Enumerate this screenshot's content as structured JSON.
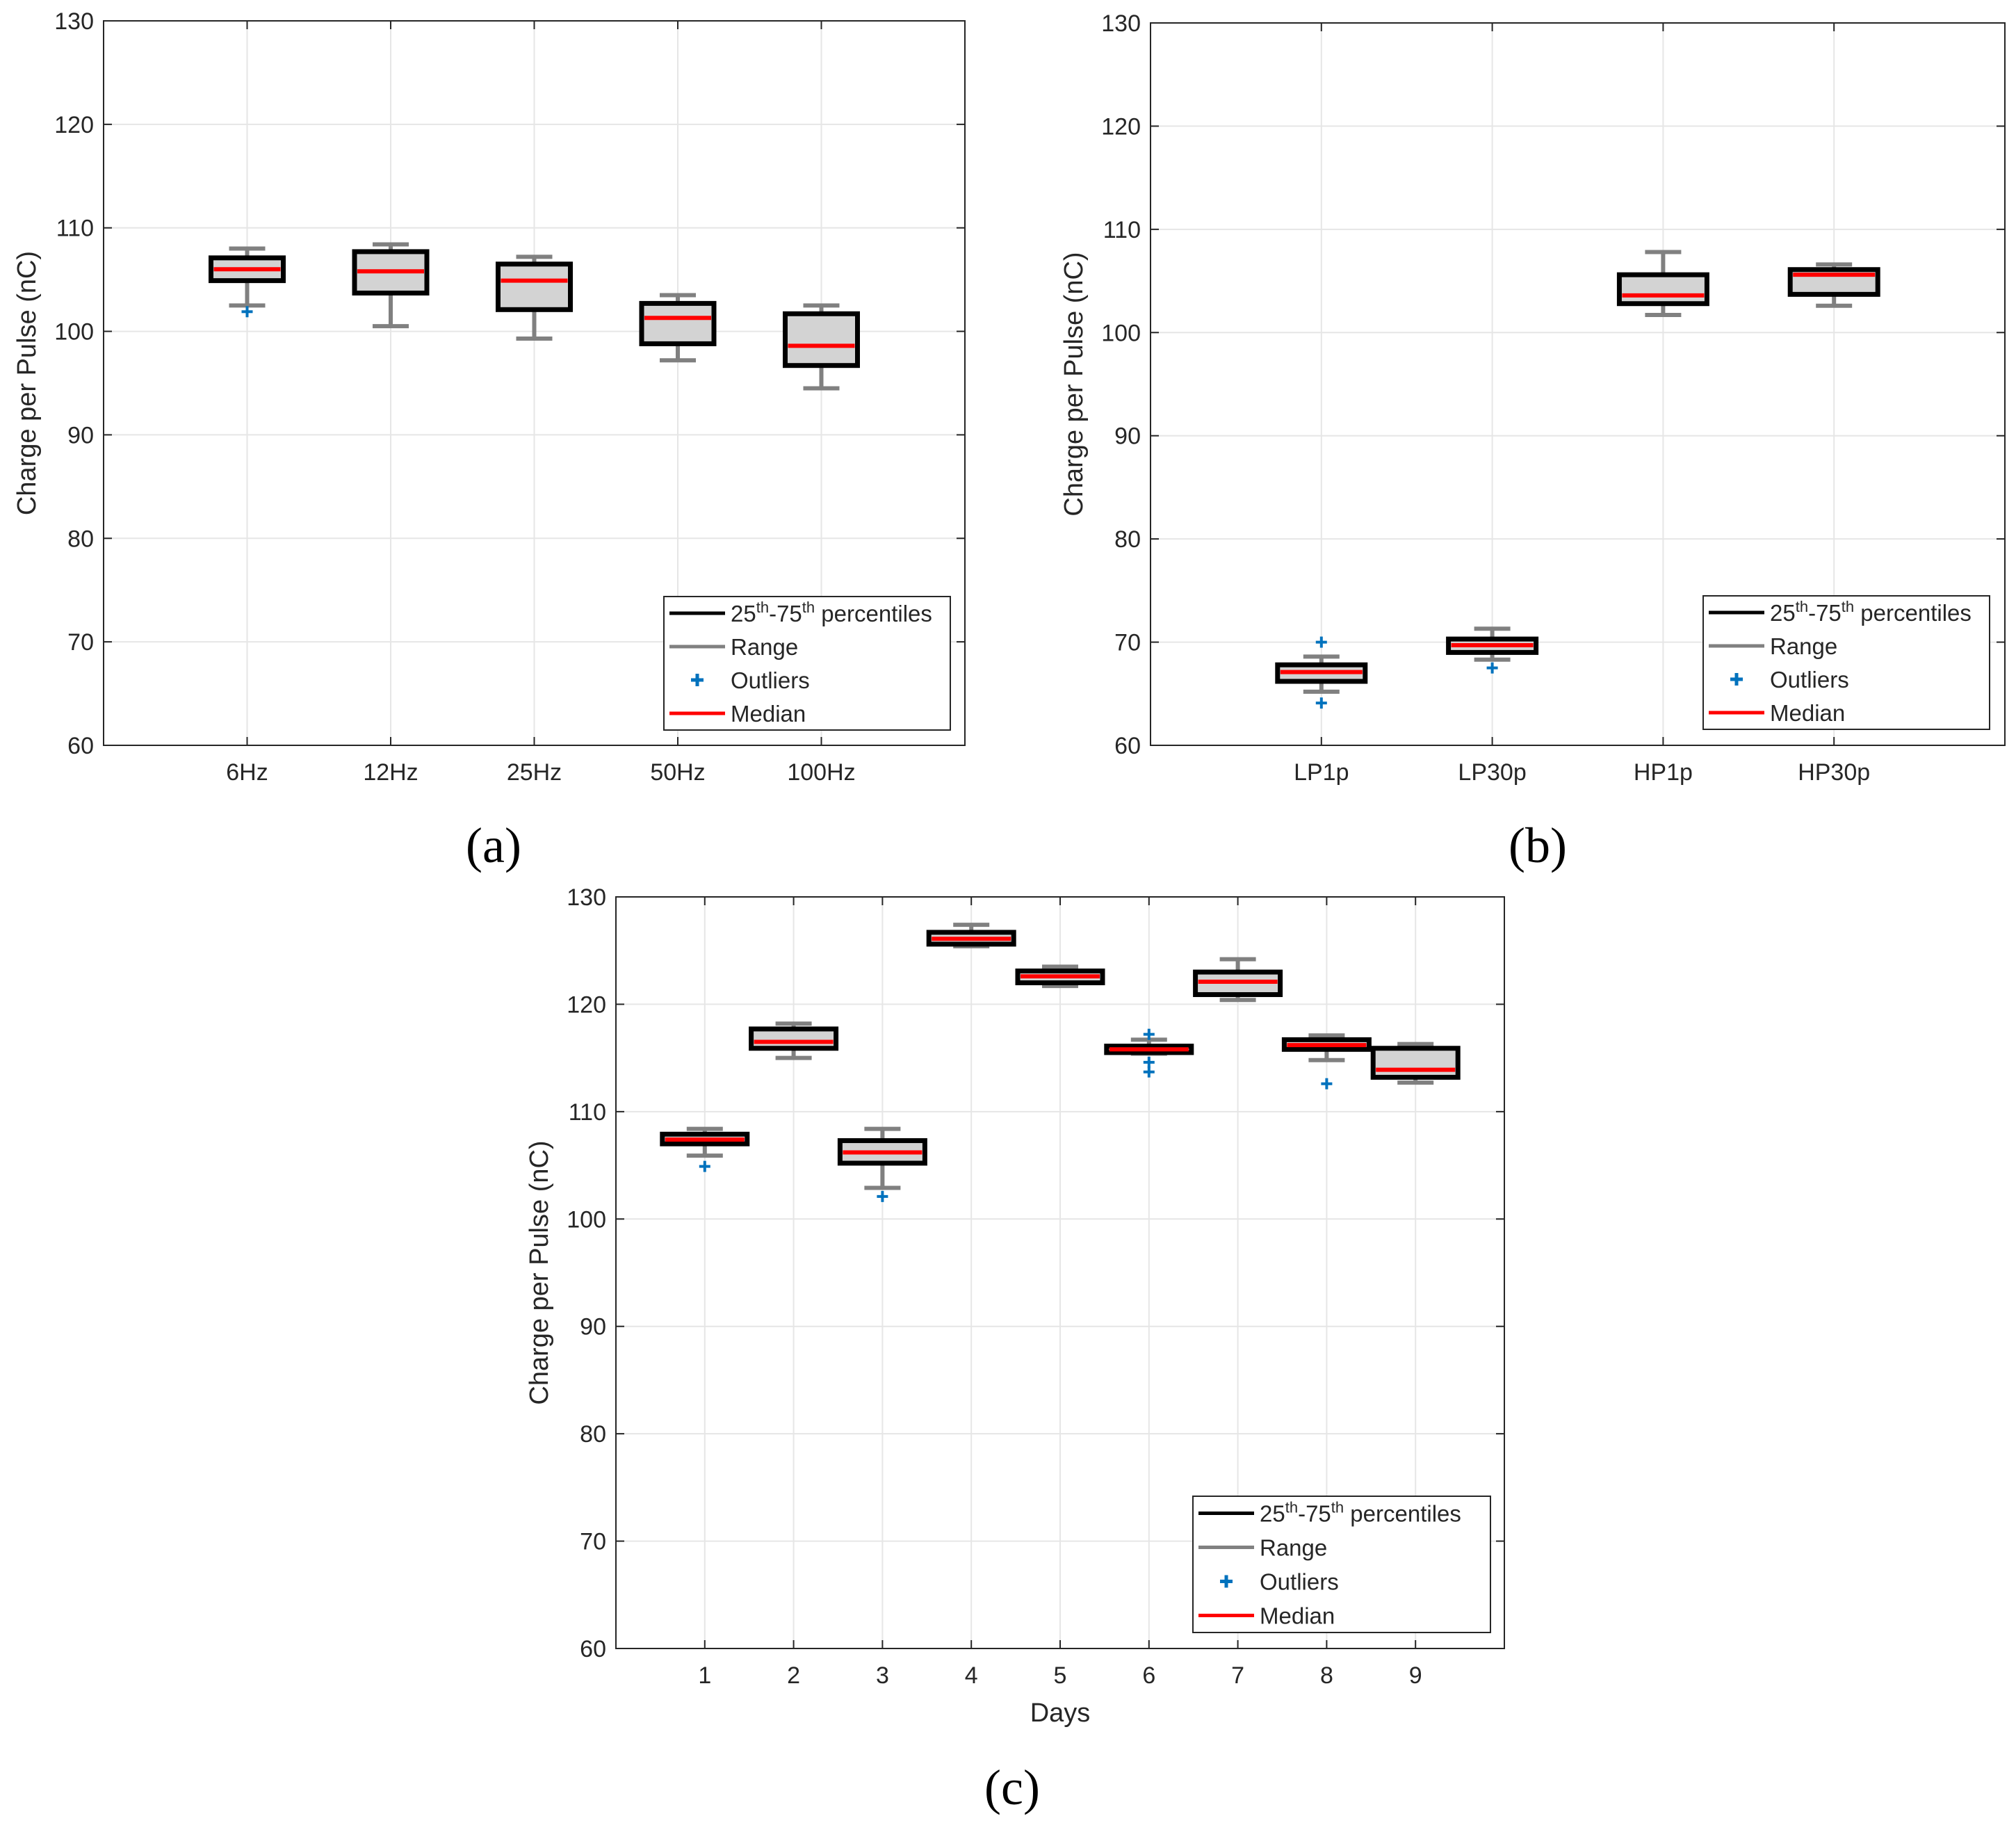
{
  "chart_data": [
    {
      "type": "box",
      "panel_label": "(a)",
      "ylabel": "Charge per Pulse (nC)",
      "xlabel": "",
      "ylim": [
        60,
        130
      ],
      "yticks": [
        "60",
        "70",
        "80",
        "90",
        "100",
        "110",
        "120",
        "130"
      ],
      "grid": true,
      "legend_position": "bottom-right",
      "categories": [
        "6Hz",
        "12Hz",
        "25Hz",
        "50Hz",
        "100Hz"
      ],
      "boxes": [
        {
          "q1": 104.9,
          "median": 106.0,
          "q3": 107.1,
          "whisker_low": 102.5,
          "whisker_high": 108.0,
          "outliers": [
            101.9
          ]
        },
        {
          "q1": 103.7,
          "median": 105.8,
          "q3": 107.7,
          "whisker_low": 100.5,
          "whisker_high": 108.4,
          "outliers": []
        },
        {
          "q1": 102.1,
          "median": 104.9,
          "q3": 106.5,
          "whisker_low": 99.3,
          "whisker_high": 107.2,
          "outliers": []
        },
        {
          "q1": 98.8,
          "median": 101.3,
          "q3": 102.7,
          "whisker_low": 97.2,
          "whisker_high": 103.5,
          "outliers": []
        },
        {
          "q1": 96.7,
          "median": 98.6,
          "q3": 101.7,
          "whisker_low": 94.5,
          "whisker_high": 102.5,
          "outliers": []
        }
      ]
    },
    {
      "type": "box",
      "panel_label": "(b)",
      "ylabel": "Charge per Pulse (nC)",
      "xlabel": "",
      "ylim": [
        60,
        130
      ],
      "yticks": [
        "60",
        "70",
        "80",
        "90",
        "100",
        "110",
        "120",
        "130"
      ],
      "grid": true,
      "legend_position": "bottom-right",
      "categories": [
        "LP1p",
        "LP30p",
        "HP1p",
        "HP30p"
      ],
      "boxes": [
        {
          "q1": 66.2,
          "median": 67.1,
          "q3": 67.8,
          "whisker_low": 65.2,
          "whisker_high": 68.6,
          "outliers": [
            70.0,
            64.1
          ]
        },
        {
          "q1": 69.0,
          "median": 69.7,
          "q3": 70.3,
          "whisker_low": 68.3,
          "whisker_high": 71.3,
          "outliers": [
            67.5
          ]
        },
        {
          "q1": 102.8,
          "median": 103.6,
          "q3": 105.6,
          "whisker_low": 101.7,
          "whisker_high": 107.8,
          "outliers": []
        },
        {
          "q1": 103.7,
          "median": 105.6,
          "q3": 106.1,
          "whisker_low": 102.6,
          "whisker_high": 106.6,
          "outliers": []
        }
      ]
    },
    {
      "type": "box",
      "panel_label": "(c)",
      "ylabel": "Charge per Pulse (nC)",
      "xlabel": "Days",
      "ylim": [
        60,
        130
      ],
      "yticks": [
        "60",
        "70",
        "80",
        "90",
        "100",
        "110",
        "120",
        "130"
      ],
      "grid": true,
      "legend_position": "bottom-right",
      "categories": [
        "1",
        "2",
        "3",
        "4",
        "5",
        "6",
        "7",
        "8",
        "9"
      ],
      "boxes": [
        {
          "q1": 107.0,
          "median": 107.4,
          "q3": 107.9,
          "whisker_low": 105.9,
          "whisker_high": 108.4,
          "outliers": [
            104.9
          ]
        },
        {
          "q1": 115.9,
          "median": 116.5,
          "q3": 117.7,
          "whisker_low": 115.0,
          "whisker_high": 118.2,
          "outliers": []
        },
        {
          "q1": 105.2,
          "median": 106.2,
          "q3": 107.3,
          "whisker_low": 102.9,
          "whisker_high": 108.4,
          "outliers": [
            102.1
          ]
        },
        {
          "q1": 125.6,
          "median": 126.1,
          "q3": 126.7,
          "whisker_low": 125.4,
          "whisker_high": 127.4,
          "outliers": []
        },
        {
          "q1": 122.0,
          "median": 122.6,
          "q3": 123.1,
          "whisker_low": 121.7,
          "whisker_high": 123.5,
          "outliers": []
        },
        {
          "q1": 115.5,
          "median": 115.8,
          "q3": 116.1,
          "whisker_low": 115.4,
          "whisker_high": 116.7,
          "outliers": [
            117.2,
            114.6,
            113.7
          ]
        },
        {
          "q1": 120.9,
          "median": 122.1,
          "q3": 123.0,
          "whisker_low": 120.4,
          "whisker_high": 124.2,
          "outliers": []
        },
        {
          "q1": 115.8,
          "median": 116.2,
          "q3": 116.7,
          "whisker_low": 114.8,
          "whisker_high": 117.1,
          "outliers": [
            112.6
          ]
        },
        {
          "q1": 113.2,
          "median": 113.9,
          "q3": 115.9,
          "whisker_low": 112.7,
          "whisker_high": 116.3,
          "outliers": []
        }
      ]
    }
  ],
  "legend": {
    "items": [
      {
        "id": "percentiles",
        "prefix": "25",
        "sup1": "th",
        "mid": "-75",
        "sup2": "th",
        "suffix": " percentiles",
        "color": "#000000"
      },
      {
        "id": "range",
        "text": "Range",
        "color": "#808080"
      },
      {
        "id": "outliers",
        "text": "Outliers",
        "color": "#0072BD"
      },
      {
        "id": "median",
        "text": "Median",
        "color": "#FF0000"
      }
    ]
  },
  "colors": {
    "box_fill": "#D3D3D3",
    "box_edge": "#000000",
    "whisker": "#808080",
    "median": "#FF0000",
    "outlier": "#0072BD",
    "grid": "#E6E6E6",
    "axis": "#262626"
  }
}
